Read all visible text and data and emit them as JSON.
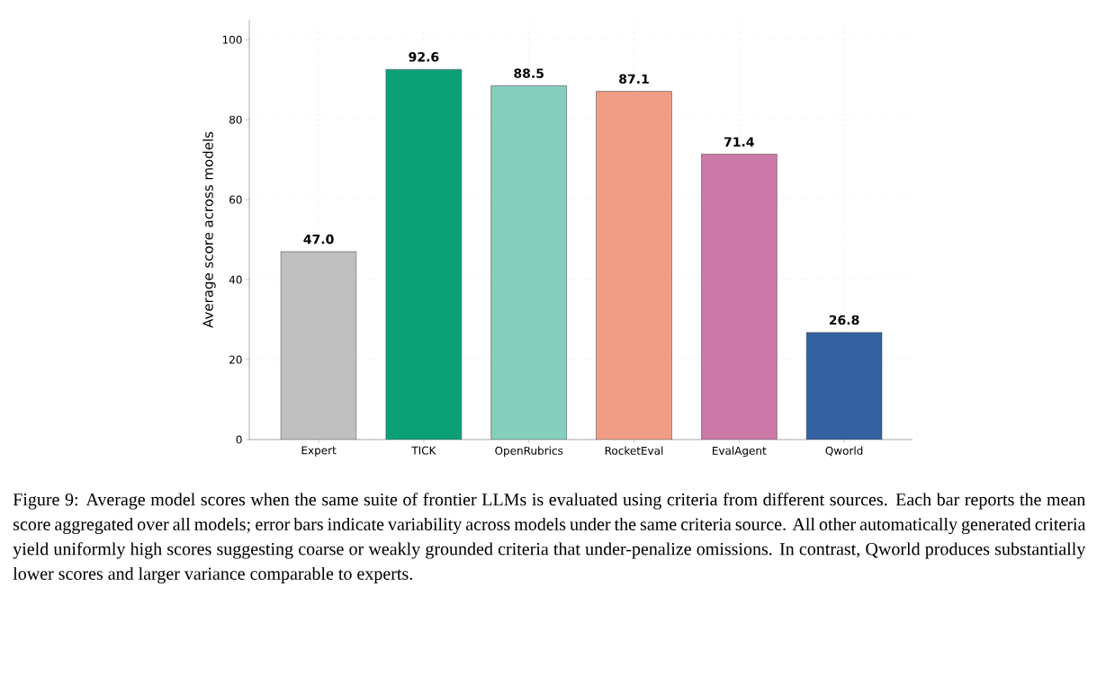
{
  "chart_data": {
    "type": "bar",
    "categories": [
      "Expert",
      "TICK",
      "OpenRubrics",
      "RocketEval",
      "EvalAgent",
      "Qworld"
    ],
    "values": [
      47.0,
      92.6,
      88.5,
      87.1,
      71.4,
      26.8
    ],
    "value_labels": [
      "47.0",
      "92.6",
      "88.5",
      "87.1",
      "71.4",
      "26.8"
    ],
    "colors": [
      "#bfbfbf",
      "#0ba177",
      "#86cfbd",
      "#f19d85",
      "#cc79a7",
      "#3361a2"
    ],
    "ylabel": "Average score across models",
    "ylim": [
      0,
      105
    ],
    "yticks": [
      0,
      20,
      40,
      60,
      80,
      100
    ],
    "grid": true,
    "annotations": [
      "Figure 9: Average model scores when the same suite of frontier LLMs is evaluated using criteria from different sources. Each bar reports the mean score aggregated over all models; error bars indicate variability across models under the same criteria source. All other automatically generated criteria yield uniformly high scores suggesting coarse or weakly grounded criteria that under-penalize omissions. In contrast, Qworld produces substantially lower scores and larger variance comparable to experts."
    ]
  }
}
